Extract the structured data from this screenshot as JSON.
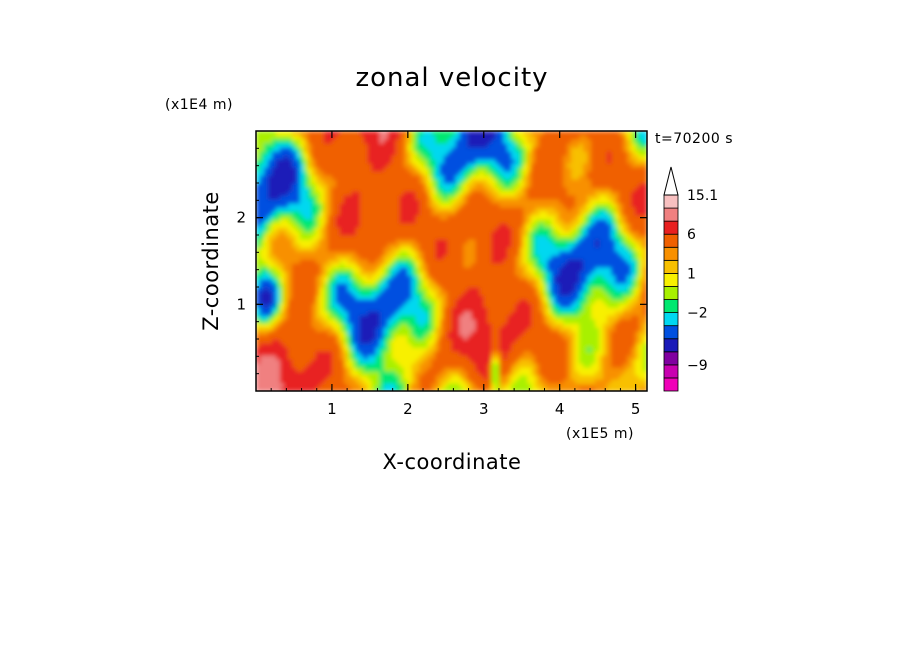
{
  "chart_data": {
    "type": "heatmap",
    "title": "zonal velocity",
    "xlabel": "X-coordinate",
    "ylabel": "Z-coordinate",
    "x_unit": "(x1E5 m)",
    "y_unit": "(x1E4 m)",
    "time_label": "t=70200 s",
    "xlim": [
      0,
      5.15
    ],
    "ylim": [
      0,
      3.0
    ],
    "x_ticks": [
      "1",
      "2",
      "3",
      "4",
      "5"
    ],
    "y_ticks": [
      "1",
      "2"
    ],
    "colorbar": {
      "labels": [
        "15.1",
        "6",
        "1",
        "−2",
        "−9"
      ],
      "levels": [
        {
          "value": -12,
          "color": "#f000b8"
        },
        {
          "value": -9,
          "color": "#c800b0"
        },
        {
          "value": -7,
          "color": "#8000a0"
        },
        {
          "value": -5,
          "color": "#1a1ab8"
        },
        {
          "value": -3,
          "color": "#0050e0"
        },
        {
          "value": -2,
          "color": "#00d8f0"
        },
        {
          "value": -1,
          "color": "#00e870"
        },
        {
          "value": 0,
          "color": "#a8f000"
        },
        {
          "value": 1,
          "color": "#f8f000"
        },
        {
          "value": 2,
          "color": "#f8c000"
        },
        {
          "value": 3,
          "color": "#f89000"
        },
        {
          "value": 6,
          "color": "#f06000"
        },
        {
          "value": 9,
          "color": "#e82020"
        },
        {
          "value": 12,
          "color": "#f08080"
        },
        {
          "value": 15.1,
          "color": "#f8c0c0"
        }
      ]
    }
  }
}
